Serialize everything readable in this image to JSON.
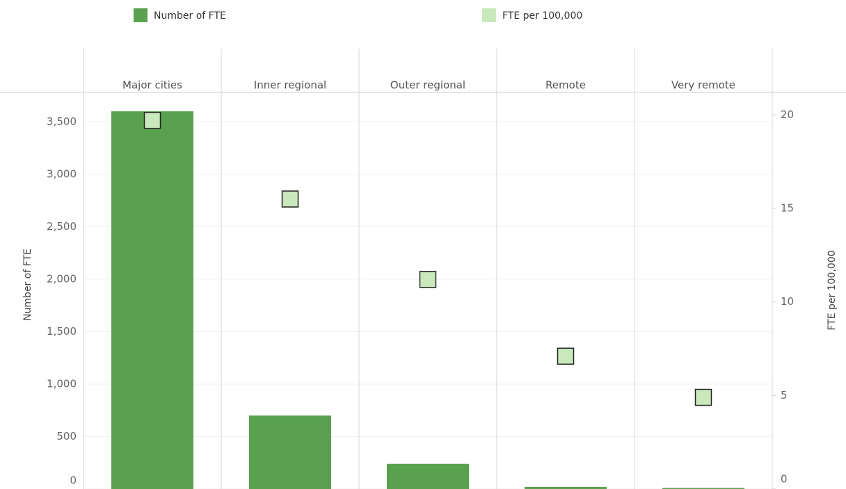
{
  "chart_data": {
    "type": "bar",
    "categories": [
      "Major cities",
      "Inner regional",
      "Outer regional",
      "Remote",
      "Very remote"
    ],
    "series": [
      {
        "name": "Number of FTE",
        "type": "bar",
        "color": "#59a14f",
        "values": [
          3600,
          700,
          240,
          20,
          10
        ]
      },
      {
        "name": "FTE per 100,000",
        "type": "scatter",
        "axis": "y2",
        "color": "#c9e8bb",
        "values": [
          19.7,
          15.5,
          11.2,
          7.1,
          4.9
        ]
      }
    ],
    "y_label": "Number of FTE",
    "y2_label": "FTE per 100,000",
    "ylim": [
      0,
      3780
    ],
    "yticks": [
      0,
      500,
      {
        "value": 1000,
        "label": "1,000"
      },
      {
        "value": 1500,
        "label": "1,500"
      },
      {
        "value": 2000,
        "label": "2,000"
      },
      {
        "value": 2500,
        "label": "2,500"
      },
      {
        "value": 3000,
        "label": "3,000"
      },
      {
        "value": 3500,
        "label": "3,500"
      }
    ],
    "y2lim": [
      0,
      21.2
    ],
    "y2ticks": [
      0,
      5,
      10,
      15,
      20
    ],
    "grid": true,
    "legend": "top"
  }
}
